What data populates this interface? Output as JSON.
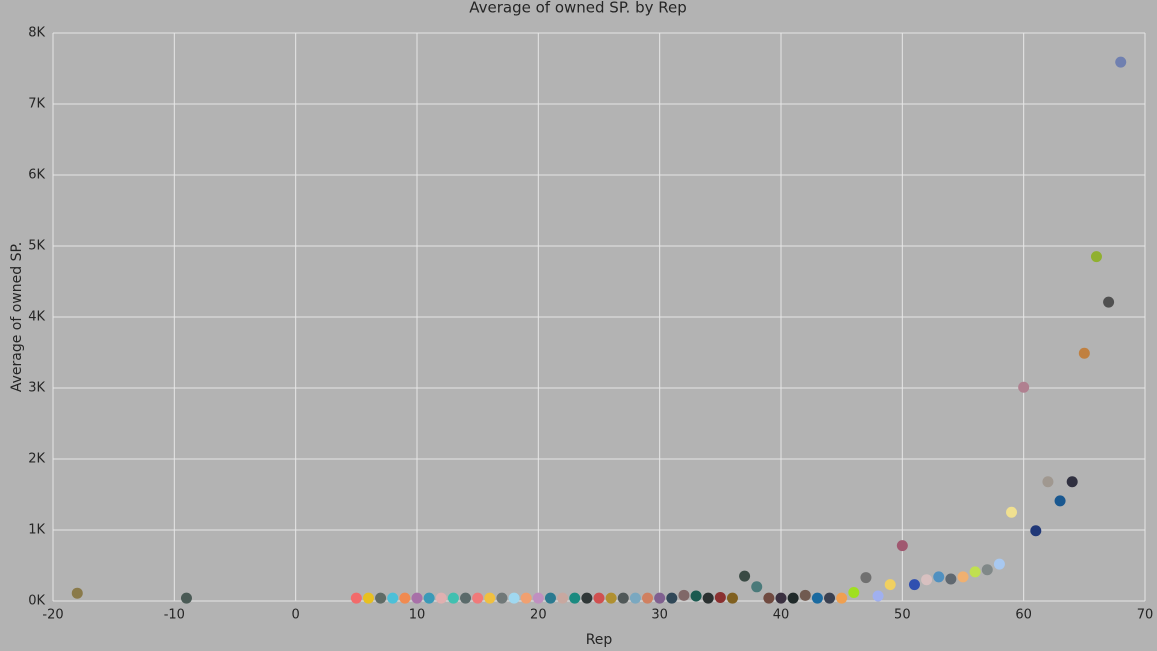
{
  "chart_data": {
    "type": "scatter",
    "title": "Average of owned SP. by Rep",
    "x_label": "Rep",
    "y_label": "Average of owned SP.",
    "x": [
      -18,
      -9,
      5,
      6,
      7,
      8,
      9,
      10,
      11,
      12,
      13,
      14,
      15,
      16,
      17,
      18,
      19,
      20,
      21,
      22,
      23,
      24,
      25,
      26,
      27,
      28,
      29,
      30,
      31,
      32,
      33,
      34,
      35,
      36,
      37,
      38,
      39,
      40,
      41,
      42,
      43,
      44,
      45,
      46,
      47,
      48,
      49,
      50,
      51,
      52,
      53,
      54,
      55,
      56,
      57,
      58,
      59,
      60,
      61,
      62,
      63,
      64,
      65,
      66,
      67,
      68
    ],
    "values": [
      110,
      40,
      40,
      40,
      40,
      40,
      40,
      40,
      40,
      40,
      40,
      40,
      40,
      40,
      40,
      40,
      40,
      40,
      40,
      40,
      40,
      40,
      40,
      40,
      40,
      40,
      40,
      40,
      40,
      80,
      70,
      40,
      50,
      40,
      350,
      200,
      40,
      40,
      40,
      80,
      40,
      40,
      40,
      120,
      330,
      70,
      230,
      780,
      230,
      300,
      340,
      310,
      340,
      410,
      440,
      520,
      1250,
      3010,
      990,
      1680,
      1410,
      1680,
      3490,
      4850,
      4210,
      7590
    ],
    "colors": [
      "#8a7a4a",
      "#4a5a55",
      "#f26b6b",
      "#e8c020",
      "#5f6b66",
      "#4cc0d8",
      "#f08a50",
      "#a870a8",
      "#3a9ab8",
      "#e0b0b0",
      "#40c0b0",
      "#5a6a6a",
      "#f07a7a",
      "#f0c040",
      "#707878",
      "#a0d8f0",
      "#f0a070",
      "#c090c0",
      "#2a7a90",
      "#c8a8a0",
      "#1a8a80",
      "#303838",
      "#d05050",
      "#b09030",
      "#505858",
      "#7aa8c0",
      "#d08060",
      "#806090",
      "#304858",
      "#806868",
      "#1a5a50",
      "#2a3030",
      "#8a3030",
      "#806020",
      "#3a4a44",
      "#4a7a7a",
      "#704a40",
      "#3a3040",
      "#202a2a",
      "#705a50",
      "#1a6aa0",
      "#3a4050",
      "#f0a050",
      "#a0e020",
      "#707070",
      "#a0b0f0",
      "#f0d060",
      "#a05870",
      "#3050b0",
      "#d8c0c0",
      "#5090c0",
      "#606870",
      "#f0b070",
      "#c0e050",
      "#808888",
      "#a8c8f0",
      "#f0e090",
      "#b08090",
      "#203878",
      "#a09890",
      "#1a5890",
      "#303040",
      "#c08040",
      "#90b030",
      "#505050",
      "#7080b0"
    ],
    "xlim": [
      -20,
      70
    ],
    "ylim": [
      0,
      8000
    ],
    "xticks": [
      -20,
      -10,
      0,
      10,
      20,
      30,
      40,
      50,
      60,
      70
    ],
    "yticks": [
      {
        "value": 0,
        "label": "0K"
      },
      {
        "value": 1000,
        "label": "1K"
      },
      {
        "value": 2000,
        "label": "2K"
      },
      {
        "value": 3000,
        "label": "3K"
      },
      {
        "value": 4000,
        "label": "4K"
      },
      {
        "value": 5000,
        "label": "5K"
      },
      {
        "value": 6000,
        "label": "6K"
      },
      {
        "value": 7000,
        "label": "7K"
      },
      {
        "value": 8000,
        "label": "8K"
      }
    ],
    "grid": true
  }
}
